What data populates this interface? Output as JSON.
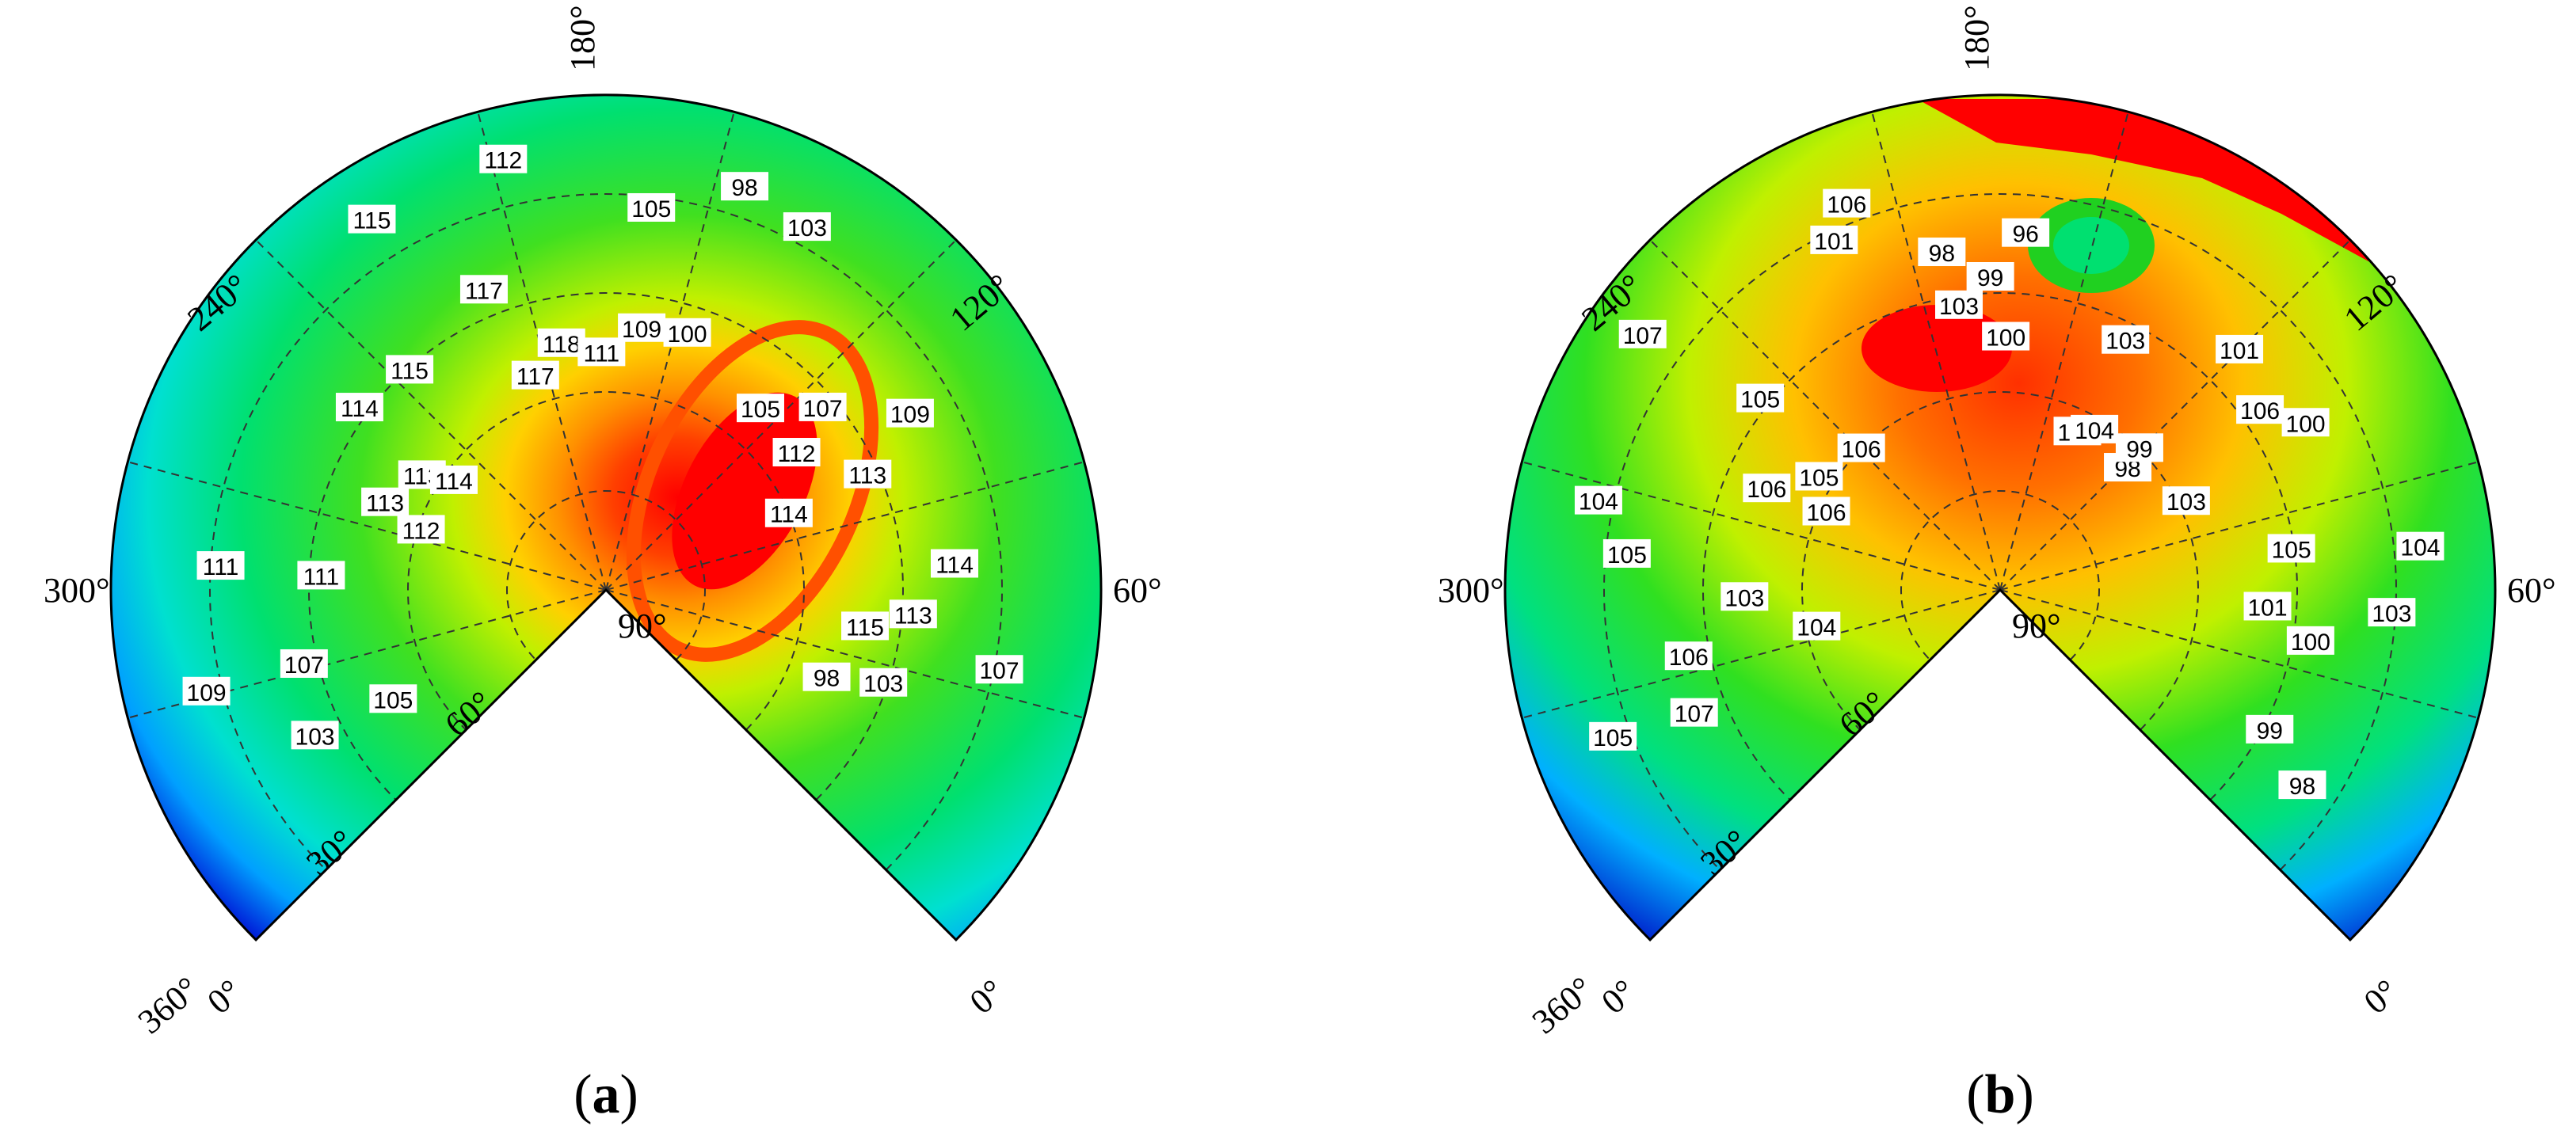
{
  "chart_data": [
    {
      "type": "heatmap",
      "panel_label_prefix": "(",
      "panel_label_letter": "a",
      "panel_label_suffix": ")",
      "angle_labels": [
        "180°",
        "240°",
        "120°",
        "300°",
        "60°",
        "90°",
        "60°",
        "30°",
        "0°",
        "360°",
        "0°"
      ],
      "contour_labels": [
        "103",
        "105",
        "107",
        "109",
        "111",
        "111",
        "112",
        "113",
        "113",
        "114",
        "114",
        "115",
        "115",
        "117",
        "117",
        "118",
        "112",
        "111",
        "109",
        "105",
        "100",
        "98",
        "103",
        "105",
        "107",
        "109",
        "112",
        "114",
        "113",
        "114",
        "115",
        "113",
        "107",
        "103",
        "98"
      ],
      "levels": [
        98,
        100,
        103,
        105,
        107,
        109,
        111,
        112,
        113,
        114,
        115,
        117,
        118
      ],
      "peak_value": 118,
      "min_value": 98
    },
    {
      "type": "heatmap",
      "panel_label_prefix": "(",
      "panel_label_letter": "b",
      "panel_label_suffix": ")",
      "angle_labels": [
        "180°",
        "240°",
        "120°",
        "300°",
        "60°",
        "90°",
        "60°",
        "30°",
        "0°",
        "360°",
        "0°"
      ],
      "contour_labels": [
        "107",
        "106",
        "105",
        "104",
        "103",
        "104",
        "105",
        "106",
        "106",
        "107",
        "105",
        "105",
        "106",
        "106",
        "101",
        "103",
        "98",
        "99",
        "100",
        "96",
        "105",
        "104",
        "103",
        "101",
        "98",
        "99",
        "100",
        "106",
        "103",
        "105",
        "104",
        "103",
        "101",
        "100",
        "99",
        "98"
      ],
      "levels": [
        96,
        98,
        99,
        100,
        101,
        103,
        104,
        105,
        106,
        107
      ],
      "peak_value": 107,
      "min_value": 96
    }
  ],
  "colors": {
    "scale": [
      "#0000c8",
      "#0050ff",
      "#00a0ff",
      "#00e0e0",
      "#00f0a0",
      "#00e060",
      "#20e020",
      "#90f000",
      "#d0f000",
      "#ffe000",
      "#ffb000",
      "#ff8000",
      "#ff4000",
      "#ff0000"
    ]
  }
}
